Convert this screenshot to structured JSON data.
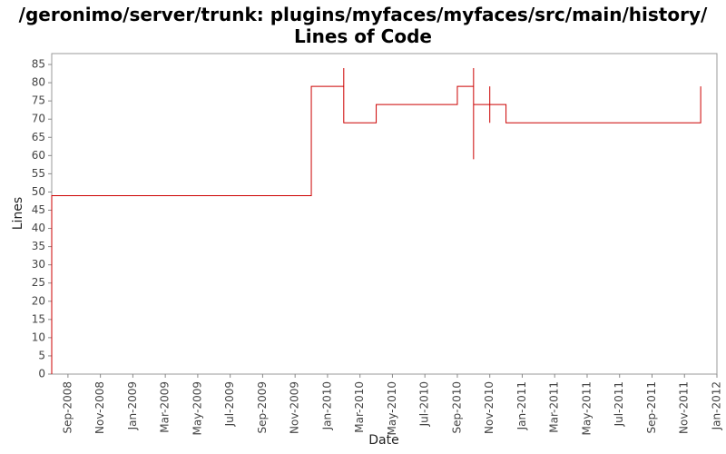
{
  "chart_data": {
    "type": "step",
    "title": "/geronimo/server/trunk: plugins/myfaces/myfaces/src/main/history/ Lines of Code",
    "x_label": "Date",
    "y_label": "Lines",
    "x": [
      "2008-08",
      "2008-08",
      "2009-12",
      "2010-02",
      "2010-02",
      "2010-04",
      "2010-09",
      "2010-10",
      "2010-10",
      "2010-10",
      "2010-10",
      "2010-11",
      "2010-11",
      "2010-11",
      "2010-11",
      "2010-12",
      "2011-12"
    ],
    "series": [
      {
        "name": "Lines",
        "color": "#cc0000",
        "values": [
          0,
          49,
          79,
          84,
          69,
          74,
          79,
          64,
          59,
          84,
          74,
          79,
          74,
          69,
          74,
          69,
          79
        ]
      }
    ],
    "xlim": [
      "2008-08",
      "2012-01"
    ],
    "xticks": [
      {
        "value": "2008-09",
        "label": "Sep-2008"
      },
      {
        "value": "2008-11",
        "label": "Nov-2008"
      },
      {
        "value": "2009-01",
        "label": "Jan-2009"
      },
      {
        "value": "2009-03",
        "label": "Mar-2009"
      },
      {
        "value": "2009-05",
        "label": "May-2009"
      },
      {
        "value": "2009-07",
        "label": "Jul-2009"
      },
      {
        "value": "2009-09",
        "label": "Sep-2009"
      },
      {
        "value": "2009-11",
        "label": "Nov-2009"
      },
      {
        "value": "2010-01",
        "label": "Jan-2010"
      },
      {
        "value": "2010-03",
        "label": "Mar-2010"
      },
      {
        "value": "2010-05",
        "label": "May-2010"
      },
      {
        "value": "2010-07",
        "label": "Jul-2010"
      },
      {
        "value": "2010-09",
        "label": "Sep-2010"
      },
      {
        "value": "2010-11",
        "label": "Nov-2010"
      },
      {
        "value": "2011-01",
        "label": "Jan-2011"
      },
      {
        "value": "2011-03",
        "label": "Mar-2011"
      },
      {
        "value": "2011-05",
        "label": "May-2011"
      },
      {
        "value": "2011-07",
        "label": "Jul-2011"
      },
      {
        "value": "2011-09",
        "label": "Sep-2011"
      },
      {
        "value": "2011-11",
        "label": "Nov-2011"
      },
      {
        "value": "2012-01",
        "label": "Jan-2012"
      }
    ],
    "ylim": [
      0,
      88
    ],
    "yticks": [
      0,
      5,
      10,
      15,
      20,
      25,
      30,
      35,
      40,
      45,
      50,
      55,
      60,
      65,
      70,
      75,
      80,
      85
    ]
  }
}
